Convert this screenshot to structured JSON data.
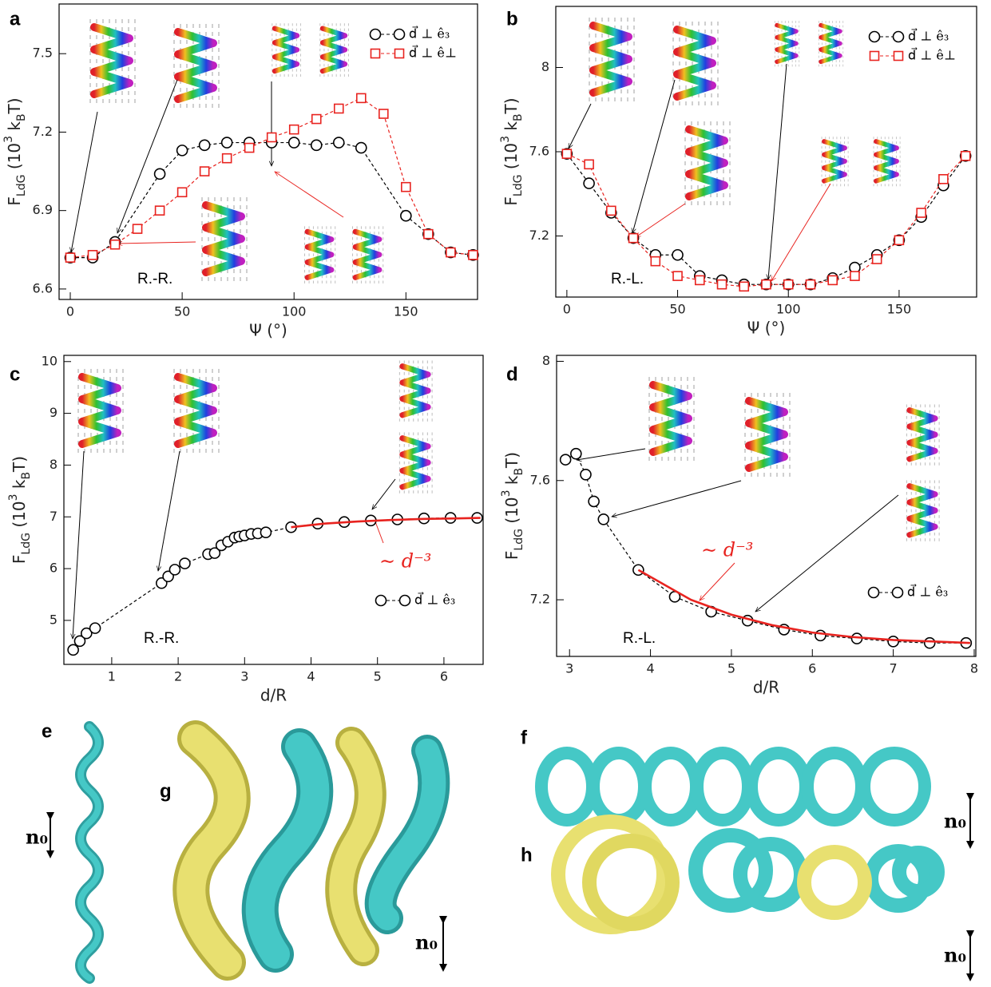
{
  "chart_data": [
    {
      "panel": "a",
      "type": "line",
      "xlabel": "Ψ (°)",
      "ylabel": [
        "F",
        "LdG",
        " (10",
        "3",
        " k",
        "B",
        "T)"
      ],
      "xlim": [
        -5,
        182
      ],
      "ylim": [
        6.56,
        7.69
      ],
      "xticks": [
        0,
        50,
        100,
        150
      ],
      "yticks": [
        6.6,
        6.9,
        7.2,
        7.5
      ],
      "legend": "upper right",
      "annotation": "R.-R.",
      "series": [
        {
          "name": "d⃗ ⊥ ê₃",
          "color": "#000000",
          "marker": "circle",
          "x": [
            0,
            10,
            20,
            40,
            50,
            60,
            70,
            80,
            90,
            100,
            110,
            120,
            130,
            150,
            160,
            170,
            180
          ],
          "values": [
            6.72,
            6.72,
            6.78,
            7.04,
            7.13,
            7.15,
            7.16,
            7.16,
            7.16,
            7.16,
            7.15,
            7.16,
            7.14,
            6.88,
            6.81,
            6.74,
            6.73
          ]
        },
        {
          "name": "d⃗ ⊥ ê⊥",
          "color": "#e8231f",
          "marker": "square",
          "x": [
            0,
            10,
            20,
            30,
            40,
            50,
            60,
            70,
            80,
            90,
            100,
            110,
            120,
            130,
            140,
            150,
            160,
            170,
            180
          ],
          "values": [
            6.72,
            6.73,
            6.77,
            6.83,
            6.9,
            6.97,
            7.05,
            7.1,
            7.14,
            7.18,
            7.21,
            7.25,
            7.29,
            7.33,
            7.27,
            6.99,
            6.81,
            6.74,
            6.73
          ]
        }
      ]
    },
    {
      "panel": "b",
      "type": "line",
      "xlabel": "Ψ (°)",
      "ylabel": [
        "F",
        "LdG",
        " (10",
        "3",
        " k",
        "B",
        "T)"
      ],
      "xlim": [
        -5,
        185
      ],
      "ylim": [
        6.91,
        8.29
      ],
      "xticks": [
        0,
        50,
        100,
        150
      ],
      "yticks": [
        7.2,
        7.6,
        8
      ],
      "legend": "upper right",
      "annotation": "R.-L.",
      "series": [
        {
          "name": "d⃗ ⊥ ê₃",
          "color": "#000000",
          "marker": "circle",
          "x": [
            0,
            10,
            20,
            30,
            40,
            50,
            60,
            70,
            80,
            90,
            100,
            110,
            120,
            130,
            140,
            150,
            160,
            170,
            180
          ],
          "values": [
            7.59,
            7.45,
            7.31,
            7.19,
            7.11,
            7.11,
            7.01,
            6.99,
            6.97,
            6.97,
            6.97,
            6.97,
            7.0,
            7.05,
            7.11,
            7.18,
            7.29,
            7.44,
            7.58
          ]
        },
        {
          "name": "d⃗ ⊥ ê⊥",
          "color": "#e8231f",
          "marker": "square",
          "x": [
            0,
            10,
            20,
            30,
            40,
            50,
            60,
            70,
            80,
            90,
            100,
            110,
            120,
            130,
            140,
            150,
            160,
            170,
            180
          ],
          "values": [
            7.59,
            7.54,
            7.32,
            7.19,
            7.08,
            7.01,
            6.99,
            6.97,
            6.96,
            6.97,
            6.97,
            6.97,
            6.99,
            7.01,
            7.09,
            7.18,
            7.31,
            7.47,
            7.58
          ]
        }
      ]
    },
    {
      "panel": "c",
      "type": "line",
      "xlabel": "d/R",
      "ylabel": [
        "F",
        "LdG",
        " (10",
        "3",
        " k",
        "B",
        "T)"
      ],
      "xlim": [
        0.28,
        6.59
      ],
      "ylim": [
        4.15,
        10.12
      ],
      "xticks": [
        1,
        2,
        3,
        4,
        5,
        6
      ],
      "yticks": [
        5,
        6,
        7,
        8,
        9,
        10
      ],
      "legend": "lower right",
      "annotation": "R.-R.",
      "fit_label": "∼ d⁻³",
      "series": [
        {
          "name": "d⃗ ⊥ ê₃",
          "color": "#000000",
          "marker": "circle",
          "x": [
            0.42,
            0.52,
            0.62,
            0.75,
            1.75,
            1.85,
            1.95,
            2.1,
            2.45,
            2.55,
            2.65,
            2.75,
            2.85,
            2.92,
            3.0,
            3.1,
            3.2,
            3.32,
            3.7,
            4.1,
            4.5,
            4.9,
            5.3,
            5.7,
            6.1,
            6.5
          ],
          "values": [
            4.43,
            4.6,
            4.75,
            4.85,
            5.72,
            5.85,
            5.98,
            6.1,
            6.28,
            6.3,
            6.45,
            6.52,
            6.6,
            6.62,
            6.64,
            6.67,
            6.68,
            6.7,
            6.8,
            6.87,
            6.9,
            6.93,
            6.95,
            6.97,
            6.98,
            6.98
          ]
        },
        {
          "color": "#e8231f",
          "x": [
            3.7,
            4.2,
            4.7,
            5.2,
            5.7,
            6.2,
            6.55
          ],
          "values": [
            6.8,
            6.87,
            6.91,
            6.94,
            6.96,
            6.97,
            6.98
          ]
        }
      ]
    },
    {
      "panel": "d",
      "type": "line",
      "xlabel": "d/R",
      "ylabel": [
        "F",
        "LdG",
        " (10",
        "3",
        " k",
        "B",
        "T)"
      ],
      "xlim": [
        2.84,
        8.02
      ],
      "ylim": [
        7.01,
        8.02
      ],
      "xticks": [
        3,
        4,
        5,
        6,
        7,
        8
      ],
      "yticks": [
        7.2,
        7.6,
        8
      ],
      "legend": "lower right",
      "annotation": "R.-L.",
      "fit_label": "∼ d⁻³",
      "series": [
        {
          "name": "d⃗ ⊥ ê₃",
          "color": "#000000",
          "marker": "circle",
          "x": [
            2.95,
            3.08,
            3.2,
            3.3,
            3.42,
            3.85,
            4.3,
            4.75,
            5.2,
            5.65,
            6.1,
            6.55,
            7.0,
            7.45,
            7.9
          ],
          "values": [
            7.67,
            7.69,
            7.62,
            7.53,
            7.47,
            7.3,
            7.21,
            7.16,
            7.13,
            7.1,
            7.08,
            7.07,
            7.06,
            7.055,
            7.055
          ]
        },
        {
          "color": "#e8231f",
          "x": [
            3.85,
            4.5,
            5.0,
            5.5,
            6.0,
            6.5,
            7.0,
            7.5,
            7.95
          ],
          "values": [
            7.3,
            7.2,
            7.15,
            7.115,
            7.09,
            7.075,
            7.065,
            7.06,
            7.055
          ]
        }
      ]
    }
  ],
  "illustrations": [
    {
      "label": "e",
      "director": "n₀"
    },
    {
      "label": "f",
      "director": "n₀"
    },
    {
      "label": "g",
      "director": "n₀"
    },
    {
      "label": "h",
      "director": "n₀"
    }
  ]
}
